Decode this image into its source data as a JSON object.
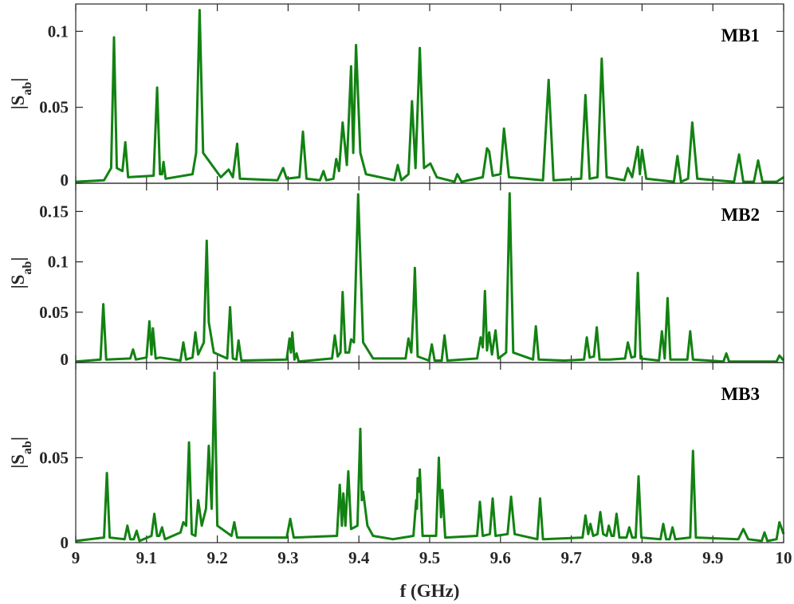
{
  "chart_data": [
    {
      "type": "line",
      "label": "MB1",
      "ylabel": [
        "|S",
        "ab",
        "|"
      ],
      "color": "#128212",
      "xlim": [
        9,
        10
      ],
      "xticks": [
        9,
        9.1,
        9.2,
        9.3,
        9.4,
        9.5,
        9.6,
        9.7,
        9.8,
        9.9,
        10
      ],
      "ylim": [
        0,
        0.118
      ],
      "yticks": [
        0,
        0.05,
        0.1
      ],
      "x": [
        9.0,
        9.04,
        9.05,
        9.054,
        9.058,
        9.066,
        9.07,
        9.074,
        9.11,
        9.115,
        9.119,
        9.122,
        9.124,
        9.127,
        9.165,
        9.17,
        9.175,
        9.18,
        9.205,
        9.216,
        9.222,
        9.228,
        9.232,
        9.285,
        9.293,
        9.298,
        9.316,
        9.321,
        9.326,
        9.345,
        9.35,
        9.354,
        9.364,
        9.368,
        9.372,
        9.377,
        9.383,
        9.389,
        9.392,
        9.396,
        9.402,
        9.41,
        9.45,
        9.455,
        9.46,
        9.47,
        9.475,
        9.48,
        9.486,
        9.492,
        9.501,
        9.51,
        9.535,
        9.539,
        9.545,
        9.575,
        9.581,
        9.584,
        9.589,
        9.6,
        9.605,
        9.612,
        9.66,
        9.668,
        9.675,
        9.714,
        9.72,
        9.726,
        9.737,
        9.743,
        9.75,
        9.775,
        9.78,
        9.786,
        9.794,
        9.797,
        9.8,
        9.806,
        9.845,
        9.85,
        9.855,
        9.865,
        9.871,
        9.878,
        9.93,
        9.937,
        9.943,
        9.958,
        9.964,
        9.97,
        9.99,
        10.0
      ],
      "values": [
        0.001,
        0.002,
        0.01,
        0.096,
        0.01,
        0.008,
        0.027,
        0.004,
        0.005,
        0.063,
        0.006,
        0.006,
        0.014,
        0.003,
        0.006,
        0.02,
        0.114,
        0.02,
        0.004,
        0.009,
        0.004,
        0.026,
        0.003,
        0.002,
        0.01,
        0.003,
        0.004,
        0.034,
        0.003,
        0.002,
        0.008,
        0.002,
        0.003,
        0.016,
        0.008,
        0.04,
        0.012,
        0.077,
        0.02,
        0.091,
        0.02,
        0.006,
        0.002,
        0.012,
        0.002,
        0.006,
        0.054,
        0.01,
        0.089,
        0.01,
        0.013,
        0.004,
        0.001,
        0.006,
        0.001,
        0.004,
        0.023,
        0.021,
        0.005,
        0.006,
        0.036,
        0.004,
        0.002,
        0.068,
        0.002,
        0.003,
        0.058,
        0.003,
        0.004,
        0.082,
        0.004,
        0.002,
        0.01,
        0.004,
        0.024,
        0.006,
        0.022,
        0.003,
        0.001,
        0.018,
        0.001,
        0.003,
        0.04,
        0.003,
        0.001,
        0.019,
        0.001,
        0.001,
        0.015,
        0.001,
        0.001,
        0.004
      ]
    },
    {
      "type": "line",
      "label": "MB2",
      "ylabel": [
        "|S",
        "ab",
        "|"
      ],
      "color": "#128212",
      "xlim": [
        9,
        10
      ],
      "xticks": [
        9,
        9.1,
        9.2,
        9.3,
        9.4,
        9.5,
        9.6,
        9.7,
        9.8,
        9.9,
        10
      ],
      "ylim": [
        0,
        0.178
      ],
      "yticks": [
        0,
        0.05,
        0.1,
        0.15
      ],
      "x": [
        9.0,
        9.035,
        9.039,
        9.043,
        9.077,
        9.081,
        9.085,
        9.1,
        9.104,
        9.107,
        9.109,
        9.113,
        9.119,
        9.148,
        9.152,
        9.156,
        9.165,
        9.169,
        9.173,
        9.181,
        9.185,
        9.188,
        9.195,
        9.214,
        9.218,
        9.222,
        9.227,
        9.23,
        9.234,
        9.298,
        9.302,
        9.304,
        9.306,
        9.309,
        9.312,
        9.315,
        9.362,
        9.366,
        9.37,
        9.374,
        9.377,
        9.381,
        9.386,
        9.389,
        9.393,
        9.399,
        9.406,
        9.42,
        9.466,
        9.47,
        9.474,
        9.477,
        9.479,
        9.483,
        9.499,
        9.503,
        9.507,
        9.517,
        9.521,
        9.525,
        9.567,
        9.572,
        9.575,
        9.578,
        9.581,
        9.584,
        9.588,
        9.593,
        9.597,
        9.608,
        9.613,
        9.618,
        9.646,
        9.65,
        9.654,
        9.69,
        9.718,
        9.722,
        9.726,
        9.732,
        9.736,
        9.74,
        9.754,
        9.776,
        9.78,
        9.785,
        9.79,
        9.794,
        9.798,
        9.824,
        9.828,
        9.832,
        9.836,
        9.84,
        9.864,
        9.868,
        9.872,
        9.915,
        9.919,
        9.923,
        9.99,
        9.994,
        10.0
      ],
      "values": [
        0.001,
        0.003,
        0.058,
        0.003,
        0.004,
        0.013,
        0.003,
        0.005,
        0.041,
        0.008,
        0.034,
        0.004,
        0.005,
        0.002,
        0.02,
        0.003,
        0.005,
        0.03,
        0.008,
        0.02,
        0.121,
        0.04,
        0.01,
        0.004,
        0.055,
        0.004,
        0.003,
        0.022,
        0.002,
        0.003,
        0.024,
        0.01,
        0.03,
        0.003,
        0.009,
        0.001,
        0.004,
        0.027,
        0.006,
        0.01,
        0.07,
        0.01,
        0.01,
        0.023,
        0.02,
        0.167,
        0.02,
        0.004,
        0.004,
        0.024,
        0.01,
        0.052,
        0.094,
        0.006,
        0.002,
        0.018,
        0.002,
        0.002,
        0.027,
        0.002,
        0.004,
        0.025,
        0.015,
        0.071,
        0.012,
        0.03,
        0.008,
        0.032,
        0.004,
        0.01,
        0.168,
        0.01,
        0.003,
        0.036,
        0.003,
        0.002,
        0.003,
        0.025,
        0.005,
        0.006,
        0.035,
        0.003,
        0.003,
        0.004,
        0.02,
        0.005,
        0.006,
        0.089,
        0.004,
        0.002,
        0.031,
        0.004,
        0.064,
        0.003,
        0.003,
        0.031,
        0.003,
        0.001,
        0.009,
        0.001,
        0.001,
        0.007,
        0.002
      ]
    },
    {
      "type": "line",
      "label": "MB3",
      "ylabel": [
        "|S",
        "ab",
        "|"
      ],
      "color": "#128212",
      "xlabel": "f (GHz)",
      "xlim": [
        9,
        10
      ],
      "xticks": [
        9,
        9.1,
        9.2,
        9.3,
        9.4,
        9.5,
        9.6,
        9.7,
        9.8,
        9.9,
        10
      ],
      "ylim": [
        0,
        0.106
      ],
      "yticks": [
        0,
        0.05
      ],
      "x": [
        9.0,
        9.04,
        9.044,
        9.048,
        9.069,
        9.073,
        9.077,
        9.082,
        9.086,
        9.09,
        9.107,
        9.111,
        9.115,
        9.118,
        9.122,
        9.126,
        9.148,
        9.152,
        9.156,
        9.16,
        9.164,
        9.169,
        9.173,
        9.178,
        9.184,
        9.188,
        9.192,
        9.196,
        9.2,
        9.22,
        9.224,
        9.228,
        9.298,
        9.303,
        9.308,
        9.369,
        9.373,
        9.376,
        9.378,
        9.381,
        9.385,
        9.389,
        9.398,
        9.402,
        9.404,
        9.406,
        9.412,
        9.42,
        9.448,
        9.477,
        9.481,
        9.482,
        9.483,
        9.485,
        9.486,
        9.49,
        9.509,
        9.513,
        9.516,
        9.518,
        9.522,
        9.567,
        9.571,
        9.575,
        9.585,
        9.589,
        9.593,
        9.61,
        9.615,
        9.62,
        9.652,
        9.656,
        9.66,
        9.716,
        9.72,
        9.724,
        9.727,
        9.731,
        9.737,
        9.741,
        9.745,
        9.75,
        9.753,
        9.757,
        9.76,
        9.764,
        9.768,
        9.778,
        9.782,
        9.786,
        9.791,
        9.795,
        9.799,
        9.826,
        9.83,
        9.834,
        9.839,
        9.843,
        9.847,
        9.868,
        9.872,
        9.876,
        9.936,
        9.943,
        9.95,
        9.969,
        9.973,
        9.977,
        9.99,
        9.994,
        10.0
      ],
      "values": [
        0.001,
        0.003,
        0.041,
        0.003,
        0.002,
        0.01,
        0.002,
        0.002,
        0.007,
        0.001,
        0.004,
        0.017,
        0.004,
        0.004,
        0.009,
        0.002,
        0.006,
        0.012,
        0.01,
        0.059,
        0.005,
        0.004,
        0.025,
        0.01,
        0.02,
        0.057,
        0.02,
        0.1,
        0.01,
        0.004,
        0.012,
        0.003,
        0.003,
        0.014,
        0.003,
        0.004,
        0.034,
        0.01,
        0.029,
        0.01,
        0.042,
        0.008,
        0.01,
        0.067,
        0.025,
        0.03,
        0.01,
        0.004,
        0.002,
        0.004,
        0.025,
        0.02,
        0.038,
        0.03,
        0.043,
        0.004,
        0.004,
        0.05,
        0.015,
        0.031,
        0.003,
        0.004,
        0.024,
        0.004,
        0.005,
        0.026,
        0.004,
        0.005,
        0.027,
        0.005,
        0.002,
        0.026,
        0.002,
        0.003,
        0.016,
        0.005,
        0.011,
        0.004,
        0.005,
        0.018,
        0.005,
        0.004,
        0.01,
        0.004,
        0.004,
        0.017,
        0.003,
        0.003,
        0.009,
        0.003,
        0.003,
        0.039,
        0.003,
        0.002,
        0.011,
        0.002,
        0.002,
        0.009,
        0.002,
        0.003,
        0.054,
        0.003,
        0.002,
        0.008,
        0.002,
        0.001,
        0.006,
        0.001,
        0.002,
        0.012,
        0.005
      ]
    }
  ]
}
